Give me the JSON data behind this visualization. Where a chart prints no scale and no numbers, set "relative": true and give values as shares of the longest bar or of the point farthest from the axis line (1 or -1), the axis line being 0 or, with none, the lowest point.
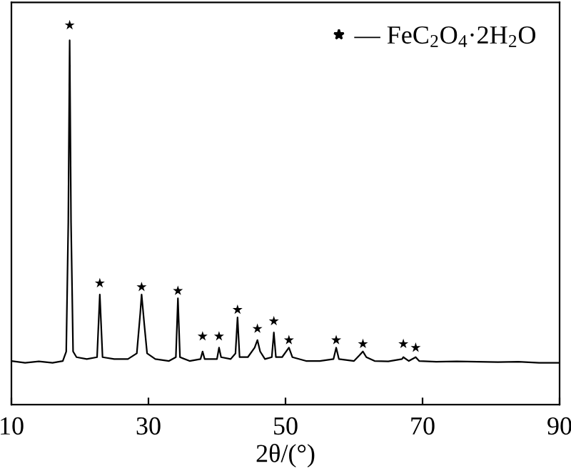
{
  "chart_data": {
    "type": "line",
    "relative": true,
    "xlabel": "2θ/(°)",
    "xlim": [
      10,
      90
    ],
    "xticks": [
      10,
      30,
      50,
      70,
      90
    ],
    "tick_labels": "x",
    "grid": false,
    "legend": "top right",
    "series": [
      {
        "color": "#000000",
        "x": [
          10,
          12,
          14,
          16,
          17.5,
          18.0,
          18.3,
          18.5,
          18.7,
          19.0,
          19.5,
          21,
          22.5,
          22.9,
          23.3,
          25,
          27,
          28.3,
          28.8,
          29.0,
          29.4,
          29.8,
          31,
          33,
          34.0,
          34.3,
          34.6,
          36,
          37.6,
          37.9,
          38.2,
          40.0,
          40.3,
          40.6,
          42,
          42.7,
          43.0,
          43.3,
          44.5,
          45.5,
          45.9,
          46.3,
          47,
          48.0,
          48.3,
          48.6,
          49.5,
          50.5,
          51,
          53,
          55,
          57,
          57.4,
          57.8,
          60,
          60.8,
          61.3,
          61.8,
          63,
          65,
          67.0,
          67.2,
          68,
          69,
          69.5,
          72,
          75,
          78,
          81,
          84,
          87,
          90
        ],
        "values": [
          0.115,
          0.11,
          0.114,
          0.11,
          0.115,
          0.14,
          0.48,
          0.96,
          0.48,
          0.14,
          0.125,
          0.12,
          0.125,
          0.29,
          0.125,
          0.12,
          0.12,
          0.135,
          0.24,
          0.29,
          0.21,
          0.135,
          0.12,
          0.115,
          0.125,
          0.28,
          0.125,
          0.115,
          0.12,
          0.14,
          0.12,
          0.12,
          0.15,
          0.125,
          0.12,
          0.135,
          0.23,
          0.125,
          0.125,
          0.15,
          0.17,
          0.14,
          0.12,
          0.125,
          0.19,
          0.125,
          0.125,
          0.15,
          0.125,
          0.115,
          0.115,
          0.12,
          0.15,
          0.12,
          0.115,
          0.13,
          0.14,
          0.125,
          0.115,
          0.114,
          0.12,
          0.125,
          0.115,
          0.125,
          0.115,
          0.113,
          0.114,
          0.113,
          0.112,
          0.113,
          0.11,
          0.11
        ]
      },
      {
        "type": "scatter",
        "name": "— FeC$_{2}$O$_{4}$·2H$_{2}$O",
        "color": "#000000",
        "marker": "star",
        "x": [
          18.5,
          22.9,
          29.0,
          34.3,
          37.9,
          40.3,
          43.0,
          45.9,
          48.3,
          50.5,
          57.4,
          61.3,
          67.2,
          69.0
        ],
        "values": [
          1.0,
          0.32,
          0.31,
          0.3,
          0.18,
          0.18,
          0.25,
          0.2,
          0.22,
          0.17,
          0.17,
          0.16,
          0.16,
          0.15
        ]
      }
    ]
  }
}
